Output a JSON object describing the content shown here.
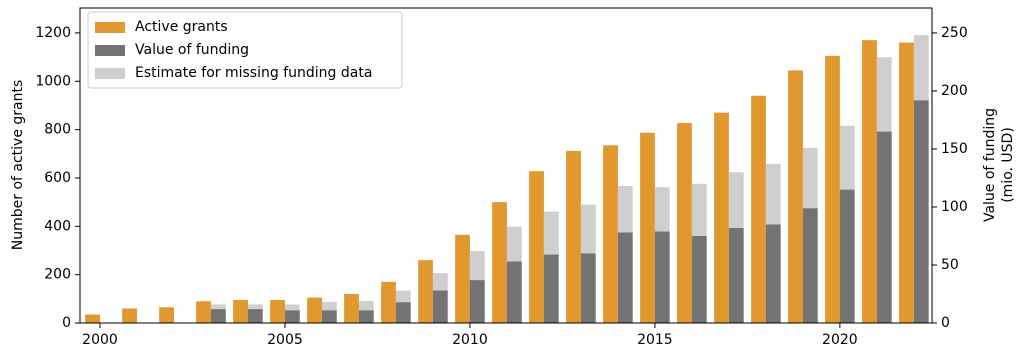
{
  "chart_data": {
    "type": "bar",
    "x": [
      2000,
      2001,
      2002,
      2003,
      2004,
      2005,
      2006,
      2007,
      2008,
      2009,
      2010,
      2011,
      2012,
      2013,
      2014,
      2015,
      2016,
      2017,
      2018,
      2019,
      2020,
      2021,
      2022
    ],
    "series": [
      {
        "name": "Active grants",
        "color": "#e0982f",
        "values": [
          35,
          60,
          65,
          90,
          95,
          95,
          105,
          120,
          170,
          260,
          365,
          500,
          628,
          712,
          735,
          787,
          827,
          870,
          940,
          1045,
          1105,
          1170,
          1160
        ]
      },
      {
        "name": "Value of funding",
        "color": "#737373",
        "axis": "y2",
        "values": [
          6,
          9,
          11,
          12,
          12,
          11,
          11,
          11,
          18,
          28,
          37,
          53,
          59,
          60,
          78,
          79,
          75,
          82,
          85,
          99,
          115,
          165,
          192
        ]
      },
      {
        "name": "Estimate for missing funding data",
        "color": "#cfcfcf",
        "axis": "y2",
        "values": [
          3,
          3,
          2,
          4,
          4,
          5,
          7,
          8,
          10,
          15,
          25,
          30,
          37,
          42,
          40,
          38,
          45,
          48,
          52,
          52,
          55,
          64,
          56
        ]
      }
    ],
    "ylabel": "Number of active grants",
    "y2label": [
      "Value of funding",
      "(mio. USD)"
    ],
    "xlim": [
      1999.46,
      2022.49
    ],
    "xticks": [
      2000,
      2005,
      2010,
      2015,
      2020
    ],
    "ylim": [
      0,
      1303
    ],
    "yticks": [
      0,
      200,
      400,
      600,
      800,
      1000,
      1200
    ],
    "y2lim": [
      0,
      271.5
    ],
    "y2ticks": [
      0,
      50,
      100,
      150,
      200,
      250
    ],
    "legend": "upper left"
  }
}
